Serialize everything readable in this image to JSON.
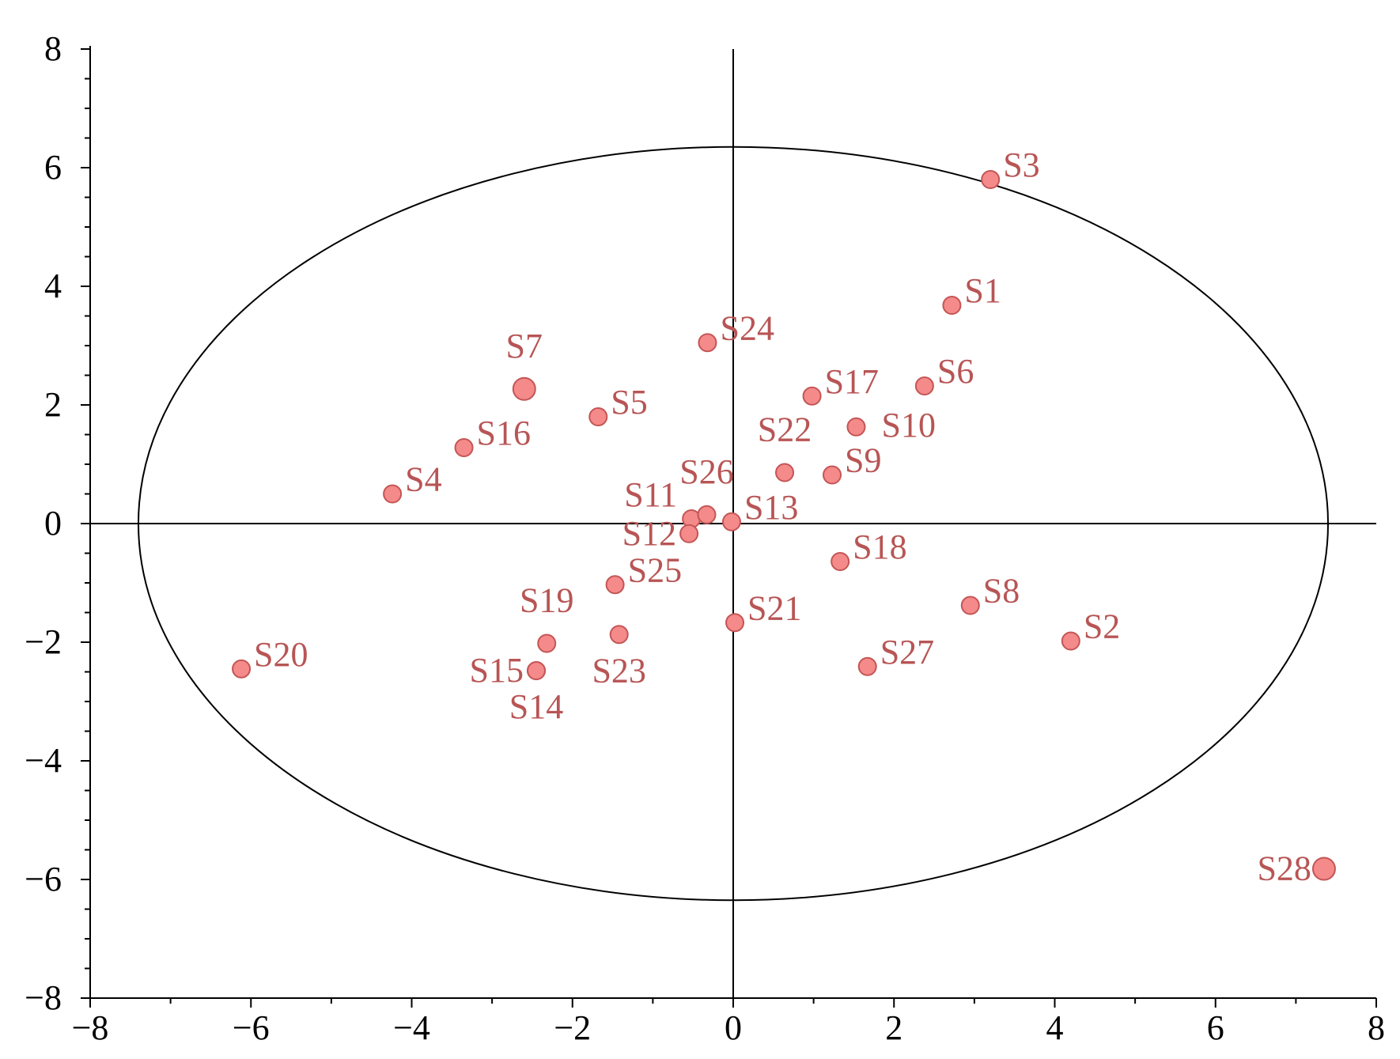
{
  "chart_data": {
    "type": "scatter",
    "title": "",
    "xlabel": "",
    "ylabel": "",
    "xlim": [
      -8,
      8
    ],
    "ylim": [
      -8,
      8
    ],
    "xticks": [
      -8,
      -6,
      -4,
      -2,
      0,
      2,
      4,
      6,
      8
    ],
    "yticks": [
      -8,
      -6,
      -4,
      -2,
      0,
      2,
      4,
      6,
      8
    ],
    "x_tick_labels": [
      "−8",
      "−6",
      "−4",
      "−2",
      "0",
      "2",
      "4",
      "6",
      "8"
    ],
    "y_tick_labels": [
      "−8",
      "−6",
      "−4",
      "−2",
      "0",
      "2",
      "4",
      "6",
      "8"
    ],
    "grid": false,
    "reference_lines": {
      "x": 0,
      "y": 0
    },
    "ellipse": {
      "cx": 0,
      "cy": 0,
      "rx": 7.4,
      "ry": 6.35
    },
    "colors": {
      "point_fill": "#f48a8a",
      "point_stroke": "#c45555",
      "label": "#b85555",
      "axis": "#000000"
    },
    "points": [
      {
        "label": "S1",
        "x": 2.72,
        "y": 3.68,
        "label_pos": "right"
      },
      {
        "label": "S2",
        "x": 4.2,
        "y": -1.98,
        "label_pos": "right"
      },
      {
        "label": "S3",
        "x": 3.2,
        "y": 5.8,
        "label_pos": "right"
      },
      {
        "label": "S4",
        "x": -4.24,
        "y": 0.5,
        "label_pos": "right"
      },
      {
        "label": "S5",
        "x": -1.68,
        "y": 1.8,
        "label_pos": "right"
      },
      {
        "label": "S6",
        "x": 2.38,
        "y": 2.32,
        "label_pos": "right"
      },
      {
        "label": "S7",
        "x": -2.6,
        "y": 2.27,
        "label_pos": "above",
        "large": true
      },
      {
        "label": "S8",
        "x": 2.95,
        "y": -1.38,
        "label_pos": "right"
      },
      {
        "label": "S9",
        "x": 1.23,
        "y": 0.82,
        "label_pos": "right"
      },
      {
        "label": "S10",
        "x": 1.53,
        "y": 1.63,
        "label_pos": "right-far"
      },
      {
        "label": "S11",
        "x": -0.52,
        "y": 0.08,
        "label_pos": "upper-left"
      },
      {
        "label": "S12",
        "x": -0.55,
        "y": -0.17,
        "label_pos": "left"
      },
      {
        "label": "S13",
        "x": -0.02,
        "y": 0.03,
        "label_pos": "right"
      },
      {
        "label": "S14",
        "x": -2.45,
        "y": -2.48,
        "label_pos": "below"
      },
      {
        "label": "S15",
        "x": -2.45,
        "y": -2.48,
        "label_pos": "left"
      },
      {
        "label": "S16",
        "x": -3.35,
        "y": 1.28,
        "label_pos": "right"
      },
      {
        "label": "S17",
        "x": 0.98,
        "y": 2.15,
        "label_pos": "right"
      },
      {
        "label": "S18",
        "x": 1.33,
        "y": -0.64,
        "label_pos": "right"
      },
      {
        "label": "S19",
        "x": -2.32,
        "y": -2.02,
        "label_pos": "above"
      },
      {
        "label": "S20",
        "x": -6.12,
        "y": -2.45,
        "label_pos": "right"
      },
      {
        "label": "S21",
        "x": 0.02,
        "y": -1.67,
        "label_pos": "right"
      },
      {
        "label": "S22",
        "x": 0.64,
        "y": 0.86,
        "label_pos": "above"
      },
      {
        "label": "S23",
        "x": -1.42,
        "y": -1.87,
        "label_pos": "below"
      },
      {
        "label": "S24",
        "x": -0.32,
        "y": 3.05,
        "label_pos": "right"
      },
      {
        "label": "S25",
        "x": -1.47,
        "y": -1.03,
        "label_pos": "right"
      },
      {
        "label": "S26",
        "x": -0.33,
        "y": 0.15,
        "label_pos": "above"
      },
      {
        "label": "S27",
        "x": 1.67,
        "y": -2.41,
        "label_pos": "right"
      },
      {
        "label": "S28",
        "x": 7.35,
        "y": -5.82,
        "label_pos": "left",
        "large": true
      }
    ]
  }
}
